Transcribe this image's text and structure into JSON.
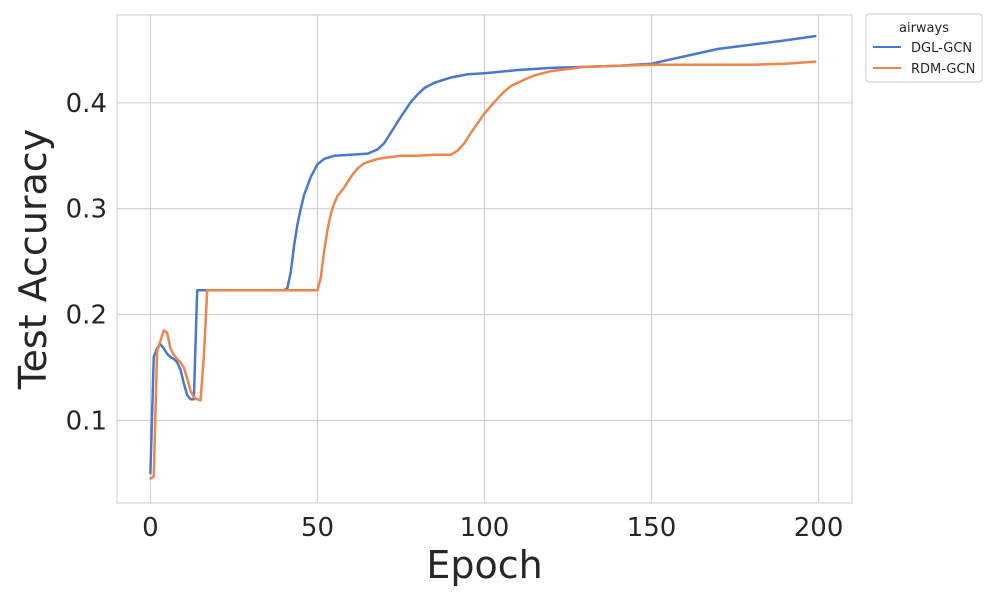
{
  "chart_data": {
    "type": "line",
    "title": "",
    "xlabel": "Epoch",
    "ylabel": "Test Accuracy",
    "xlim": [
      -10,
      210
    ],
    "ylim": [
      0.022,
      0.483
    ],
    "xticks": [
      0,
      50,
      100,
      150,
      200
    ],
    "yticks": [
      0.1,
      0.2,
      0.3,
      0.4
    ],
    "xtick_labels": [
      "0",
      "50",
      "100",
      "150",
      "200"
    ],
    "ytick_labels": [
      "0.1",
      "0.2",
      "0.3",
      "0.4"
    ],
    "grid": true,
    "legend": {
      "title": "airways",
      "placement": "outside-top-right"
    },
    "series": [
      {
        "name": "DGL-GCN",
        "color": "#4878d0",
        "x": [
          0,
          1,
          2,
          3,
          4,
          5,
          6,
          7,
          8,
          9,
          10,
          11,
          12,
          13,
          14,
          15,
          16,
          17,
          18,
          19,
          20,
          25,
          30,
          35,
          40,
          41,
          42,
          43,
          44,
          45,
          46,
          48,
          50,
          52,
          55,
          60,
          65,
          68,
          70,
          72,
          75,
          78,
          80,
          82,
          85,
          90,
          95,
          100,
          110,
          120,
          130,
          140,
          150,
          160,
          170,
          180,
          190,
          199
        ],
        "values": [
          0.05,
          0.16,
          0.168,
          0.172,
          0.168,
          0.163,
          0.16,
          0.158,
          0.155,
          0.148,
          0.135,
          0.124,
          0.12,
          0.12,
          0.223,
          0.223,
          0.223,
          0.223,
          0.223,
          0.223,
          0.223,
          0.223,
          0.223,
          0.223,
          0.223,
          0.225,
          0.24,
          0.265,
          0.285,
          0.3,
          0.313,
          0.33,
          0.342,
          0.347,
          0.35,
          0.351,
          0.352,
          0.356,
          0.362,
          0.372,
          0.387,
          0.401,
          0.408,
          0.414,
          0.419,
          0.424,
          0.427,
          0.428,
          0.431,
          0.433,
          0.434,
          0.435,
          0.437,
          0.444,
          0.451,
          0.455,
          0.459,
          0.463
        ]
      },
      {
        "name": "RDM-GCN",
        "color": "#ee854a",
        "x": [
          0,
          1,
          2,
          3,
          4,
          5,
          6,
          7,
          8,
          9,
          10,
          11,
          12,
          13,
          14,
          15,
          16,
          17,
          18,
          19,
          20,
          25,
          30,
          35,
          40,
          45,
          48,
          50,
          51,
          52,
          53,
          54,
          55,
          56,
          58,
          60,
          62,
          64,
          66,
          68,
          70,
          75,
          80,
          85,
          90,
          92,
          94,
          96,
          98,
          100,
          103,
          106,
          108,
          110,
          112,
          115,
          120,
          125,
          130,
          140,
          150,
          160,
          170,
          180,
          190,
          195,
          199
        ],
        "values": [
          0.045,
          0.047,
          0.165,
          0.175,
          0.185,
          0.183,
          0.168,
          0.162,
          0.158,
          0.155,
          0.15,
          0.14,
          0.128,
          0.122,
          0.12,
          0.119,
          0.16,
          0.223,
          0.223,
          0.223,
          0.223,
          0.223,
          0.223,
          0.223,
          0.223,
          0.223,
          0.223,
          0.223,
          0.235,
          0.26,
          0.28,
          0.295,
          0.305,
          0.312,
          0.32,
          0.33,
          0.338,
          0.343,
          0.345,
          0.347,
          0.348,
          0.35,
          0.35,
          0.351,
          0.351,
          0.355,
          0.362,
          0.372,
          0.381,
          0.39,
          0.401,
          0.411,
          0.416,
          0.419,
          0.422,
          0.426,
          0.43,
          0.432,
          0.434,
          0.435,
          0.436,
          0.436,
          0.436,
          0.436,
          0.437,
          0.438,
          0.439
        ]
      }
    ]
  }
}
